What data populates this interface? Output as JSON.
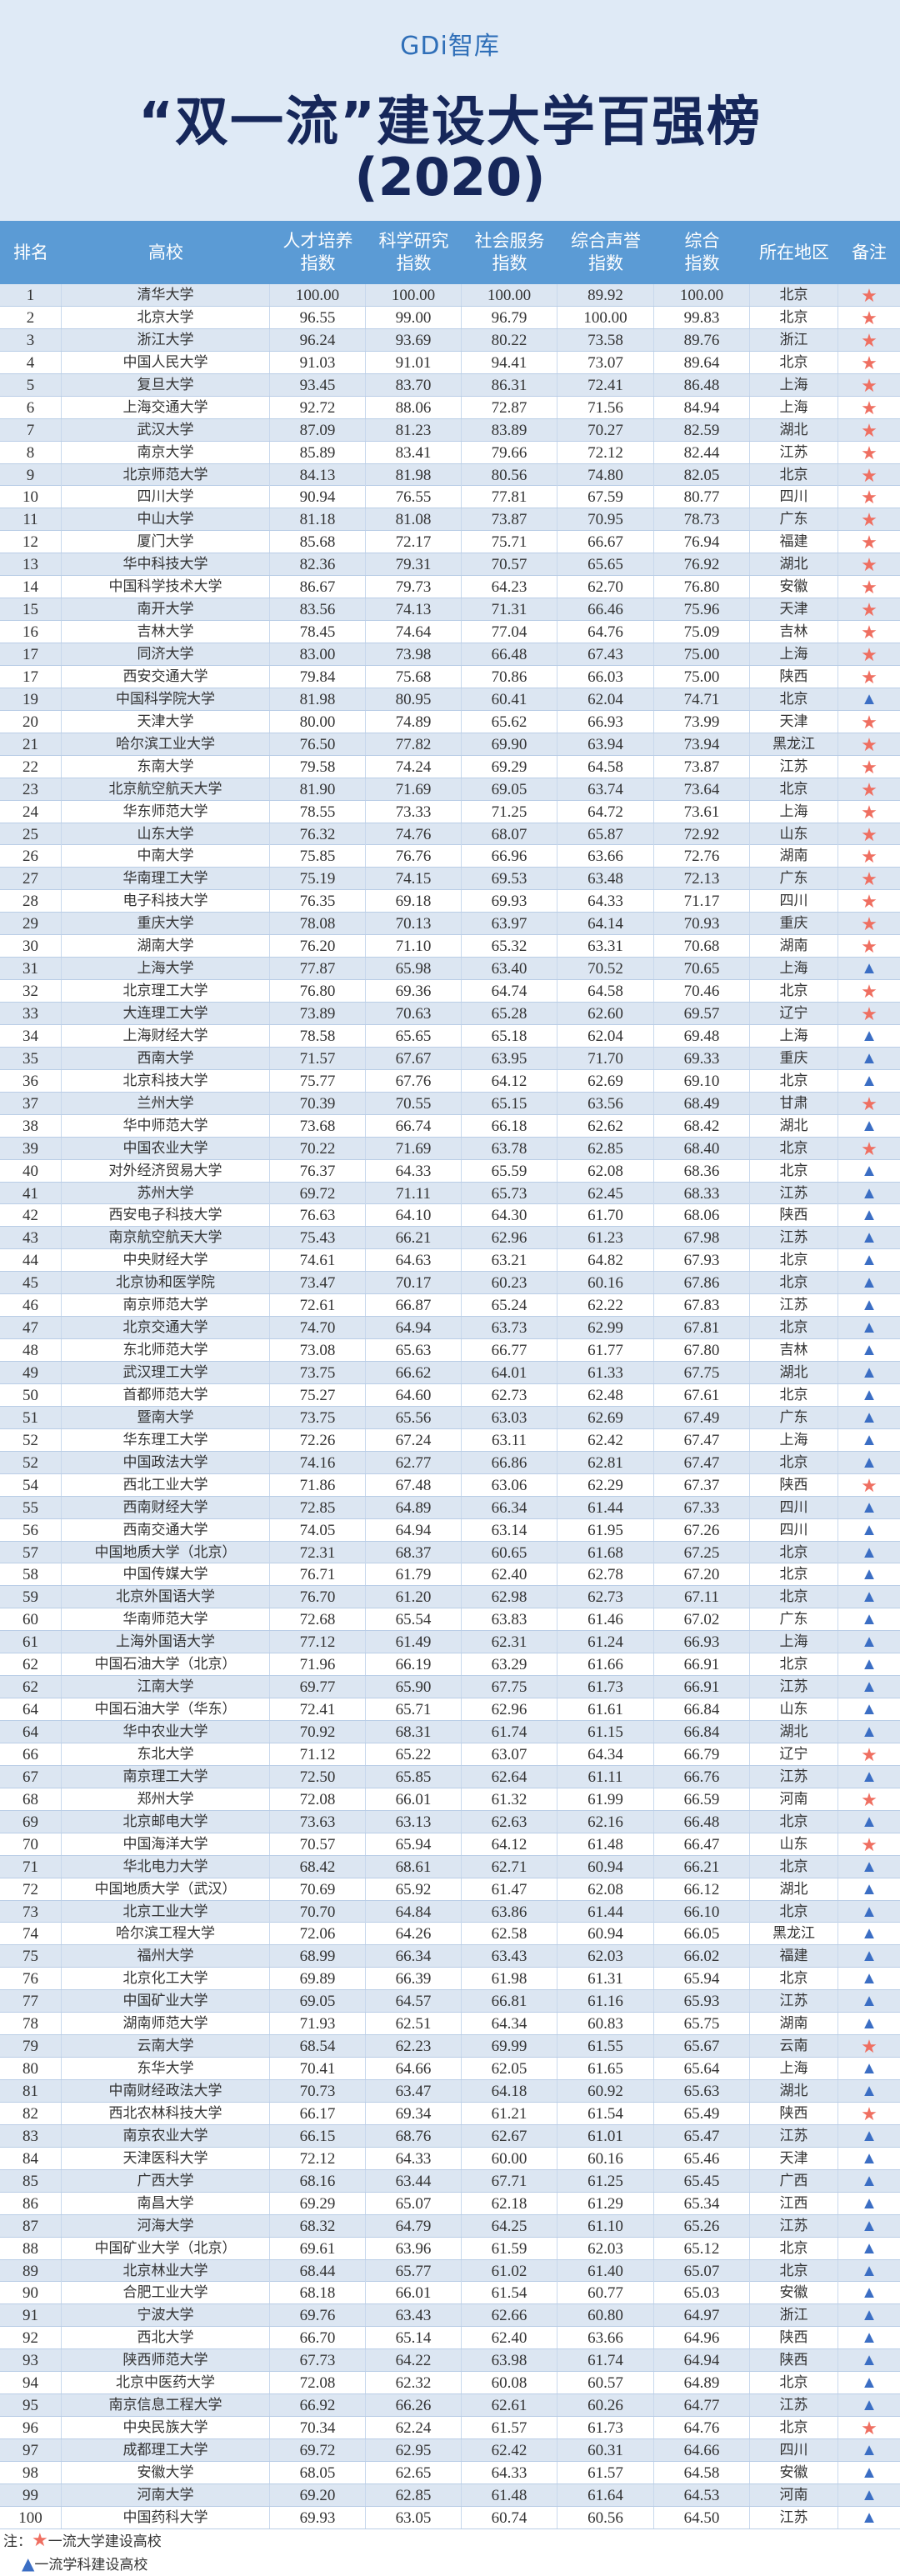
{
  "header": {
    "logo": "GDi智库",
    "title": "“双一流”建设大学百强榜",
    "year": "(2020)"
  },
  "colors": {
    "header_bg": "#dfeaf6",
    "table_header": "#5b9bd5",
    "row_alt": "#dce6f2",
    "star": "#ef6f61",
    "triangle": "#3b6ec4",
    "title": "#16275a"
  },
  "table": {
    "columns": [
      "排名",
      "高校",
      "人才培养\n指数",
      "科学研究\n指数",
      "社会服务\n指数",
      "综合声誉\n指数",
      "综合\n指数",
      "所在地区",
      "备注"
    ],
    "marks": {
      "star": "★",
      "triangle": "▲"
    },
    "rows": [
      [
        "1",
        "清华大学",
        "100.00",
        "100.00",
        "100.00",
        "89.92",
        "100.00",
        "北京",
        "star"
      ],
      [
        "2",
        "北京大学",
        "96.55",
        "99.00",
        "96.79",
        "100.00",
        "99.83",
        "北京",
        "star"
      ],
      [
        "3",
        "浙江大学",
        "96.24",
        "93.69",
        "80.22",
        "73.58",
        "89.76",
        "浙江",
        "star"
      ],
      [
        "4",
        "中国人民大学",
        "91.03",
        "91.01",
        "94.41",
        "73.07",
        "89.64",
        "北京",
        "star"
      ],
      [
        "5",
        "复旦大学",
        "93.45",
        "83.70",
        "86.31",
        "72.41",
        "86.48",
        "上海",
        "star"
      ],
      [
        "6",
        "上海交通大学",
        "92.72",
        "88.06",
        "72.87",
        "71.56",
        "84.94",
        "上海",
        "star"
      ],
      [
        "7",
        "武汉大学",
        "87.09",
        "81.23",
        "83.89",
        "70.27",
        "82.59",
        "湖北",
        "star"
      ],
      [
        "8",
        "南京大学",
        "85.89",
        "83.41",
        "79.66",
        "72.12",
        "82.44",
        "江苏",
        "star"
      ],
      [
        "9",
        "北京师范大学",
        "84.13",
        "81.98",
        "80.56",
        "74.80",
        "82.05",
        "北京",
        "star"
      ],
      [
        "10",
        "四川大学",
        "90.94",
        "76.55",
        "77.81",
        "67.59",
        "80.77",
        "四川",
        "star"
      ],
      [
        "11",
        "中山大学",
        "81.18",
        "81.08",
        "73.87",
        "70.95",
        "78.73",
        "广东",
        "star"
      ],
      [
        "12",
        "厦门大学",
        "85.68",
        "72.17",
        "75.71",
        "66.67",
        "76.94",
        "福建",
        "star"
      ],
      [
        "13",
        "华中科技大学",
        "82.36",
        "79.31",
        "70.57",
        "65.65",
        "76.92",
        "湖北",
        "star"
      ],
      [
        "14",
        "中国科学技术大学",
        "86.67",
        "79.73",
        "64.23",
        "62.70",
        "76.80",
        "安徽",
        "star"
      ],
      [
        "15",
        "南开大学",
        "83.56",
        "74.13",
        "71.31",
        "66.46",
        "75.96",
        "天津",
        "star"
      ],
      [
        "16",
        "吉林大学",
        "78.45",
        "74.64",
        "77.04",
        "64.76",
        "75.09",
        "吉林",
        "star"
      ],
      [
        "17",
        "同济大学",
        "83.00",
        "73.98",
        "66.48",
        "67.43",
        "75.00",
        "上海",
        "star"
      ],
      [
        "17",
        "西安交通大学",
        "79.84",
        "75.68",
        "70.86",
        "66.03",
        "75.00",
        "陕西",
        "star"
      ],
      [
        "19",
        "中国科学院大学",
        "81.98",
        "80.95",
        "60.41",
        "62.04",
        "74.71",
        "北京",
        "triangle"
      ],
      [
        "20",
        "天津大学",
        "80.00",
        "74.89",
        "65.62",
        "66.93",
        "73.99",
        "天津",
        "star"
      ],
      [
        "21",
        "哈尔滨工业大学",
        "76.50",
        "77.82",
        "69.90",
        "63.94",
        "73.94",
        "黑龙江",
        "star"
      ],
      [
        "22",
        "东南大学",
        "79.58",
        "74.24",
        "69.29",
        "64.58",
        "73.87",
        "江苏",
        "star"
      ],
      [
        "23",
        "北京航空航天大学",
        "81.90",
        "71.69",
        "69.05",
        "63.74",
        "73.64",
        "北京",
        "star"
      ],
      [
        "24",
        "华东师范大学",
        "78.55",
        "73.33",
        "71.25",
        "64.72",
        "73.61",
        "上海",
        "star"
      ],
      [
        "25",
        "山东大学",
        "76.32",
        "74.76",
        "68.07",
        "65.87",
        "72.92",
        "山东",
        "star"
      ],
      [
        "26",
        "中南大学",
        "75.85",
        "76.76",
        "66.96",
        "63.66",
        "72.76",
        "湖南",
        "star"
      ],
      [
        "27",
        "华南理工大学",
        "75.19",
        "74.15",
        "69.53",
        "63.48",
        "72.13",
        "广东",
        "star"
      ],
      [
        "28",
        "电子科技大学",
        "76.35",
        "69.18",
        "69.93",
        "64.33",
        "71.17",
        "四川",
        "star"
      ],
      [
        "29",
        "重庆大学",
        "78.08",
        "70.13",
        "63.97",
        "64.14",
        "70.93",
        "重庆",
        "star"
      ],
      [
        "30",
        "湖南大学",
        "76.20",
        "71.10",
        "65.32",
        "63.31",
        "70.68",
        "湖南",
        "star"
      ],
      [
        "31",
        "上海大学",
        "77.87",
        "65.98",
        "63.40",
        "70.52",
        "70.65",
        "上海",
        "triangle"
      ],
      [
        "32",
        "北京理工大学",
        "76.80",
        "69.36",
        "64.74",
        "64.58",
        "70.46",
        "北京",
        "star"
      ],
      [
        "33",
        "大连理工大学",
        "73.89",
        "70.63",
        "65.28",
        "62.60",
        "69.57",
        "辽宁",
        "star"
      ],
      [
        "34",
        "上海财经大学",
        "78.58",
        "65.65",
        "65.18",
        "62.04",
        "69.48",
        "上海",
        "triangle"
      ],
      [
        "35",
        "西南大学",
        "71.57",
        "67.67",
        "63.95",
        "71.70",
        "69.33",
        "重庆",
        "triangle"
      ],
      [
        "36",
        "北京科技大学",
        "75.77",
        "67.76",
        "64.12",
        "62.69",
        "69.10",
        "北京",
        "triangle"
      ],
      [
        "37",
        "兰州大学",
        "70.39",
        "70.55",
        "65.15",
        "63.56",
        "68.49",
        "甘肃",
        "star"
      ],
      [
        "38",
        "华中师范大学",
        "73.68",
        "66.74",
        "66.18",
        "62.62",
        "68.42",
        "湖北",
        "triangle"
      ],
      [
        "39",
        "中国农业大学",
        "70.22",
        "71.69",
        "63.78",
        "62.85",
        "68.40",
        "北京",
        "star"
      ],
      [
        "40",
        "对外经济贸易大学",
        "76.37",
        "64.33",
        "65.59",
        "62.08",
        "68.36",
        "北京",
        "triangle"
      ],
      [
        "41",
        "苏州大学",
        "69.72",
        "71.11",
        "65.73",
        "62.45",
        "68.33",
        "江苏",
        "triangle"
      ],
      [
        "42",
        "西安电子科技大学",
        "76.63",
        "64.10",
        "64.30",
        "61.70",
        "68.06",
        "陕西",
        "triangle"
      ],
      [
        "43",
        "南京航空航天大学",
        "75.43",
        "66.21",
        "62.96",
        "61.23",
        "67.98",
        "江苏",
        "triangle"
      ],
      [
        "44",
        "中央财经大学",
        "74.61",
        "64.63",
        "63.21",
        "64.82",
        "67.93",
        "北京",
        "triangle"
      ],
      [
        "45",
        "北京协和医学院",
        "73.47",
        "70.17",
        "60.23",
        "60.16",
        "67.86",
        "北京",
        "triangle"
      ],
      [
        "46",
        "南京师范大学",
        "72.61",
        "66.87",
        "65.24",
        "62.22",
        "67.83",
        "江苏",
        "triangle"
      ],
      [
        "47",
        "北京交通大学",
        "74.70",
        "64.94",
        "63.73",
        "62.99",
        "67.81",
        "北京",
        "triangle"
      ],
      [
        "48",
        "东北师范大学",
        "73.08",
        "65.63",
        "66.77",
        "61.77",
        "67.80",
        "吉林",
        "triangle"
      ],
      [
        "49",
        "武汉理工大学",
        "73.75",
        "66.62",
        "64.01",
        "61.33",
        "67.75",
        "湖北",
        "triangle"
      ],
      [
        "50",
        "首都师范大学",
        "75.27",
        "64.60",
        "62.73",
        "62.48",
        "67.61",
        "北京",
        "triangle"
      ],
      [
        "51",
        "暨南大学",
        "73.75",
        "65.56",
        "63.03",
        "62.69",
        "67.49",
        "广东",
        "triangle"
      ],
      [
        "52",
        "华东理工大学",
        "72.26",
        "67.24",
        "63.11",
        "62.42",
        "67.47",
        "上海",
        "triangle"
      ],
      [
        "52",
        "中国政法大学",
        "74.16",
        "62.77",
        "66.86",
        "62.81",
        "67.47",
        "北京",
        "triangle"
      ],
      [
        "54",
        "西北工业大学",
        "71.86",
        "67.48",
        "63.06",
        "62.29",
        "67.37",
        "陕西",
        "star"
      ],
      [
        "55",
        "西南财经大学",
        "72.85",
        "64.89",
        "66.34",
        "61.44",
        "67.33",
        "四川",
        "triangle"
      ],
      [
        "56",
        "西南交通大学",
        "74.05",
        "64.94",
        "63.14",
        "61.95",
        "67.26",
        "四川",
        "triangle"
      ],
      [
        "57",
        "中国地质大学（北京）",
        "72.31",
        "68.37",
        "60.65",
        "61.68",
        "67.25",
        "北京",
        "triangle"
      ],
      [
        "58",
        "中国传媒大学",
        "76.71",
        "61.79",
        "62.40",
        "62.78",
        "67.20",
        "北京",
        "triangle"
      ],
      [
        "59",
        "北京外国语大学",
        "76.70",
        "61.20",
        "62.98",
        "62.73",
        "67.11",
        "北京",
        "triangle"
      ],
      [
        "60",
        "华南师范大学",
        "72.68",
        "65.54",
        "63.83",
        "61.46",
        "67.02",
        "广东",
        "triangle"
      ],
      [
        "61",
        "上海外国语大学",
        "77.12",
        "61.49",
        "62.31",
        "61.24",
        "66.93",
        "上海",
        "triangle"
      ],
      [
        "62",
        "中国石油大学（北京）",
        "71.96",
        "66.19",
        "63.29",
        "61.66",
        "66.91",
        "北京",
        "triangle"
      ],
      [
        "62",
        "江南大学",
        "69.77",
        "65.90",
        "67.75",
        "61.73",
        "66.91",
        "江苏",
        "triangle"
      ],
      [
        "64",
        "中国石油大学（华东）",
        "72.41",
        "65.71",
        "62.96",
        "61.61",
        "66.84",
        "山东",
        "triangle"
      ],
      [
        "64",
        "华中农业大学",
        "70.92",
        "68.31",
        "61.74",
        "61.15",
        "66.84",
        "湖北",
        "triangle"
      ],
      [
        "66",
        "东北大学",
        "71.12",
        "65.22",
        "63.07",
        "64.34",
        "66.79",
        "辽宁",
        "star"
      ],
      [
        "67",
        "南京理工大学",
        "72.50",
        "65.85",
        "62.64",
        "61.11",
        "66.76",
        "江苏",
        "triangle"
      ],
      [
        "68",
        "郑州大学",
        "72.08",
        "66.01",
        "61.32",
        "61.99",
        "66.59",
        "河南",
        "star"
      ],
      [
        "69",
        "北京邮电大学",
        "73.63",
        "63.13",
        "62.63",
        "62.16",
        "66.48",
        "北京",
        "triangle"
      ],
      [
        "70",
        "中国海洋大学",
        "70.57",
        "65.94",
        "64.12",
        "61.48",
        "66.47",
        "山东",
        "star"
      ],
      [
        "71",
        "华北电力大学",
        "68.42",
        "68.61",
        "62.71",
        "60.94",
        "66.21",
        "北京",
        "triangle"
      ],
      [
        "72",
        "中国地质大学（武汉）",
        "70.69",
        "65.92",
        "61.47",
        "62.08",
        "66.12",
        "湖北",
        "triangle"
      ],
      [
        "73",
        "北京工业大学",
        "70.70",
        "64.84",
        "63.86",
        "61.44",
        "66.10",
        "北京",
        "triangle"
      ],
      [
        "74",
        "哈尔滨工程大学",
        "72.06",
        "64.26",
        "62.58",
        "60.94",
        "66.05",
        "黑龙江",
        "triangle"
      ],
      [
        "75",
        "福州大学",
        "68.99",
        "66.34",
        "63.43",
        "62.03",
        "66.02",
        "福建",
        "triangle"
      ],
      [
        "76",
        "北京化工大学",
        "69.89",
        "66.39",
        "61.98",
        "61.31",
        "65.94",
        "北京",
        "triangle"
      ],
      [
        "77",
        "中国矿业大学",
        "69.05",
        "64.57",
        "66.81",
        "61.16",
        "65.93",
        "江苏",
        "triangle"
      ],
      [
        "78",
        "湖南师范大学",
        "71.93",
        "62.51",
        "64.34",
        "60.83",
        "65.75",
        "湖南",
        "triangle"
      ],
      [
        "79",
        "云南大学",
        "68.54",
        "62.23",
        "69.99",
        "61.55",
        "65.67",
        "云南",
        "star"
      ],
      [
        "80",
        "东华大学",
        "70.41",
        "64.66",
        "62.05",
        "61.65",
        "65.64",
        "上海",
        "triangle"
      ],
      [
        "81",
        "中南财经政法大学",
        "70.73",
        "63.47",
        "64.18",
        "60.92",
        "65.63",
        "湖北",
        "triangle"
      ],
      [
        "82",
        "西北农林科技大学",
        "66.17",
        "69.34",
        "61.21",
        "61.54",
        "65.49",
        "陕西",
        "star"
      ],
      [
        "83",
        "南京农业大学",
        "66.15",
        "68.76",
        "62.67",
        "61.01",
        "65.47",
        "江苏",
        "triangle"
      ],
      [
        "84",
        "天津医科大学",
        "72.12",
        "64.33",
        "60.00",
        "60.16",
        "65.46",
        "天津",
        "triangle"
      ],
      [
        "85",
        "广西大学",
        "68.16",
        "63.44",
        "67.71",
        "61.25",
        "65.45",
        "广西",
        "triangle"
      ],
      [
        "86",
        "南昌大学",
        "69.29",
        "65.07",
        "62.18",
        "61.29",
        "65.34",
        "江西",
        "triangle"
      ],
      [
        "87",
        "河海大学",
        "68.32",
        "64.79",
        "64.25",
        "61.10",
        "65.26",
        "江苏",
        "triangle"
      ],
      [
        "88",
        "中国矿业大学（北京）",
        "69.61",
        "63.96",
        "61.59",
        "62.03",
        "65.12",
        "北京",
        "triangle"
      ],
      [
        "89",
        "北京林业大学",
        "68.44",
        "65.77",
        "61.02",
        "61.40",
        "65.07",
        "北京",
        "triangle"
      ],
      [
        "90",
        "合肥工业大学",
        "68.18",
        "66.01",
        "61.54",
        "60.77",
        "65.03",
        "安徽",
        "triangle"
      ],
      [
        "91",
        "宁波大学",
        "69.76",
        "63.43",
        "62.66",
        "60.80",
        "64.97",
        "浙江",
        "triangle"
      ],
      [
        "92",
        "西北大学",
        "66.70",
        "65.14",
        "62.40",
        "63.66",
        "64.96",
        "陕西",
        "triangle"
      ],
      [
        "93",
        "陕西师范大学",
        "67.73",
        "64.22",
        "63.98",
        "61.74",
        "64.94",
        "陕西",
        "triangle"
      ],
      [
        "94",
        "北京中医药大学",
        "72.08",
        "62.32",
        "60.08",
        "60.57",
        "64.89",
        "北京",
        "triangle"
      ],
      [
        "95",
        "南京信息工程大学",
        "66.92",
        "66.26",
        "62.61",
        "60.26",
        "64.77",
        "江苏",
        "triangle"
      ],
      [
        "96",
        "中央民族大学",
        "70.34",
        "62.24",
        "61.57",
        "61.73",
        "64.76",
        "北京",
        "star"
      ],
      [
        "97",
        "成都理工大学",
        "69.72",
        "62.95",
        "62.42",
        "60.31",
        "64.66",
        "四川",
        "triangle"
      ],
      [
        "98",
        "安徽大学",
        "68.05",
        "62.65",
        "64.33",
        "61.57",
        "64.58",
        "安徽",
        "triangle"
      ],
      [
        "99",
        "河南大学",
        "69.20",
        "62.85",
        "61.48",
        "61.64",
        "64.53",
        "河南",
        "triangle"
      ],
      [
        "100",
        "中国药科大学",
        "69.93",
        "63.05",
        "60.74",
        "60.56",
        "64.50",
        "江苏",
        "triangle"
      ]
    ]
  },
  "notes": {
    "prefix": "注：",
    "star_label": "一流大学建设高校",
    "triangle_label": "一流学科建设高校"
  }
}
